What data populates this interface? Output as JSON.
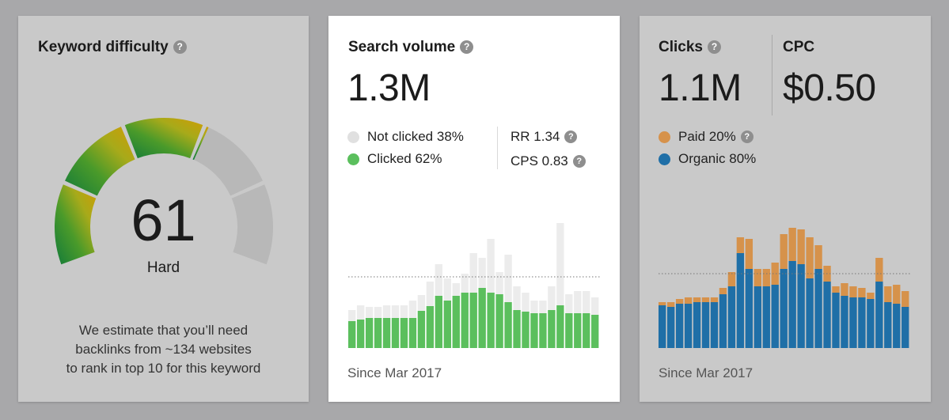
{
  "keyword_difficulty": {
    "title": "Keyword difficulty",
    "help_icon": "question-icon",
    "value": "61",
    "level": "Hard",
    "score": 61,
    "estimate_lines": [
      "We estimate that you’ll need",
      "backlinks from ~134 websites",
      "to rank in top 10 for this keyword"
    ],
    "colors": {
      "low": "#1f8a3a",
      "mid": "#a3a81c",
      "high": "#c89f06",
      "empty": "#b8b8b8"
    }
  },
  "search_volume": {
    "title": "Search volume",
    "help_icon": "question-icon",
    "value": "1.3M",
    "legend": [
      {
        "label": "Not clicked 38%",
        "color": "#e0e0e0"
      },
      {
        "label": "Clicked 62%",
        "color": "#5bbf5d"
      }
    ],
    "rr": "RR 1.34",
    "cps": "CPS 0.83",
    "since": "Since Mar 2017",
    "chart_data": {
      "type": "bar",
      "stacked": true,
      "series": [
        {
          "name": "Clicked",
          "color": "#5bbf5d",
          "values": [
            34,
            36,
            38,
            38,
            38,
            38,
            38,
            38,
            47,
            53,
            66,
            60,
            66,
            70,
            70,
            76,
            70,
            68,
            58,
            48,
            46,
            44,
            44,
            48,
            54,
            44,
            44,
            44,
            42
          ]
        },
        {
          "name": "Not clicked",
          "color": "#ececec",
          "values": [
            14,
            18,
            14,
            14,
            16,
            16,
            16,
            22,
            20,
            31,
            40,
            28,
            16,
            24,
            50,
            38,
            68,
            28,
            60,
            30,
            24,
            16,
            16,
            30,
            104,
            24,
            28,
            28,
            22
          ]
        }
      ],
      "reference_line": 90
    }
  },
  "clicks": {
    "title": "Clicks",
    "help_icon": "question-icon",
    "value": "1.1M",
    "cpc_title": "CPC",
    "cpc_value": "$0.50",
    "legend": [
      {
        "label": "Paid 20%",
        "color": "#d6924b"
      },
      {
        "label": "Organic 80%",
        "color": "#1f6fa7"
      }
    ],
    "since": "Since Mar 2017",
    "chart_data": {
      "type": "bar",
      "stacked": true,
      "series": [
        {
          "name": "Organic",
          "color": "#1f6fa7",
          "values": [
            54,
            52,
            56,
            56,
            58,
            58,
            58,
            68,
            78,
            120,
            100,
            78,
            78,
            80,
            100,
            110,
            106,
            88,
            100,
            84,
            70,
            66,
            64,
            64,
            62,
            84,
            58,
            56,
            52
          ]
        },
        {
          "name": "Paid",
          "color": "#d6924b",
          "values": [
            4,
            6,
            6,
            8,
            6,
            6,
            6,
            8,
            18,
            20,
            38,
            22,
            22,
            28,
            44,
            42,
            44,
            52,
            30,
            20,
            8,
            16,
            14,
            12,
            8,
            30,
            20,
            24,
            20
          ]
        }
      ],
      "reference_line": 94
    }
  }
}
